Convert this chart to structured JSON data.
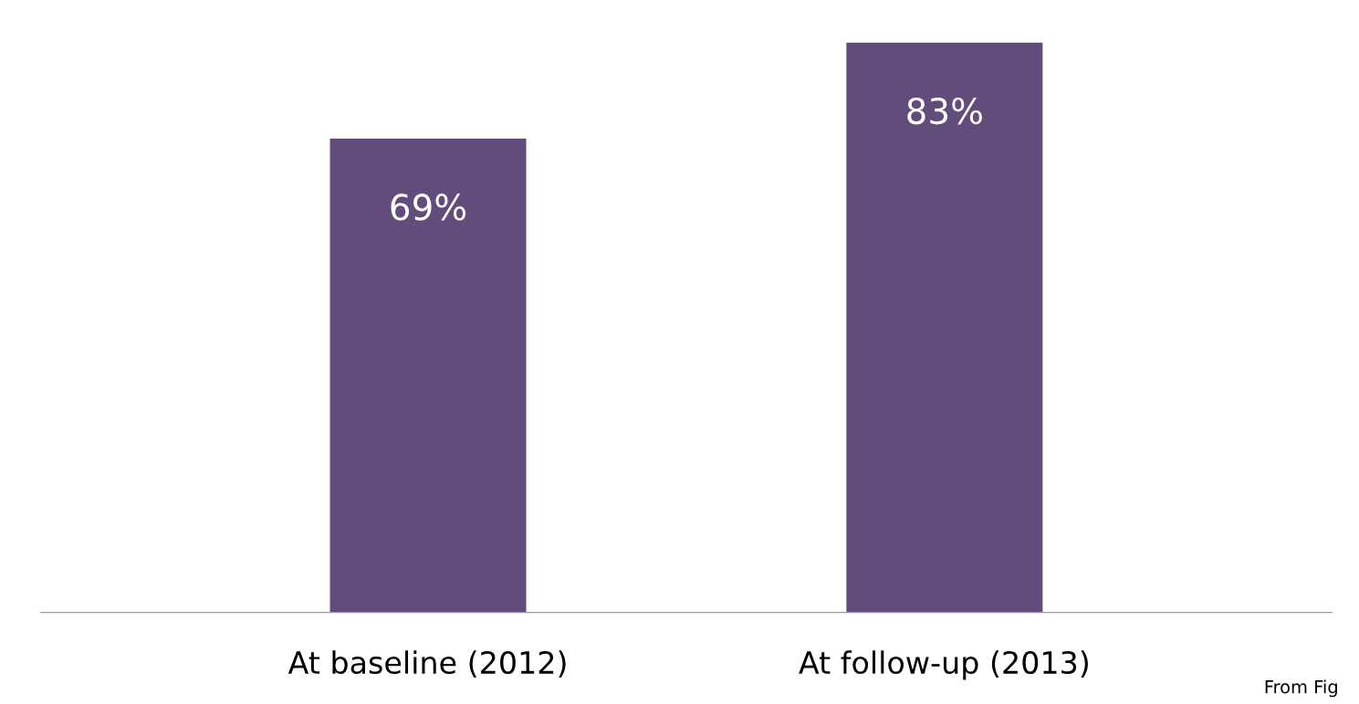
{
  "chart_data": {
    "type": "bar",
    "categories": [
      "At baseline (2012)",
      "At follow-up (2013)"
    ],
    "values": [
      69,
      83
    ],
    "value_labels": [
      "69%",
      "83%"
    ],
    "color": "#624c7c",
    "annotations": [
      "From Fig"
    ],
    "grid": false,
    "legend": false
  }
}
